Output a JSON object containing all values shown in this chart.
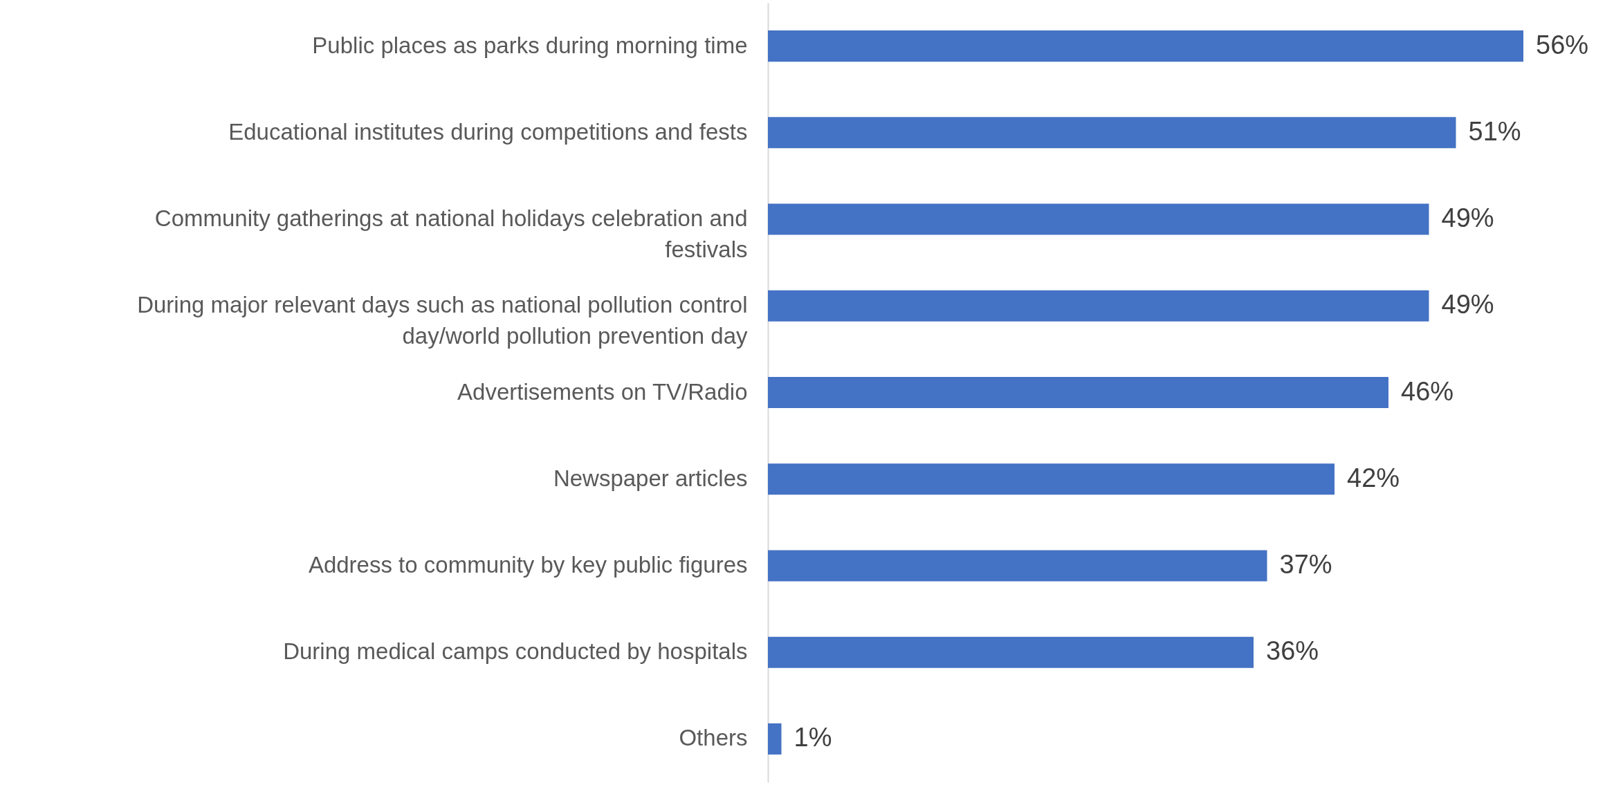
{
  "chart_data": {
    "type": "bar",
    "orientation": "horizontal",
    "categories": [
      "Public places as parks during morning time",
      "Educational institutes during competitions and fests",
      "Community gatherings at national holidays celebration and festivals",
      "During major relevant days such as national pollution control day/world pollution prevention day",
      "Advertisements on TV/Radio",
      "Newspaper articles",
      "Address to community by key public figures",
      "During medical camps conducted by hospitals",
      "Others"
    ],
    "values": [
      56,
      51,
      49,
      49,
      46,
      42,
      37,
      36,
      1
    ],
    "value_labels": [
      "56%",
      "51%",
      "49%",
      "49%",
      "46%",
      "42%",
      "37%",
      "36%",
      "1%"
    ],
    "color": "#4472c4"
  }
}
